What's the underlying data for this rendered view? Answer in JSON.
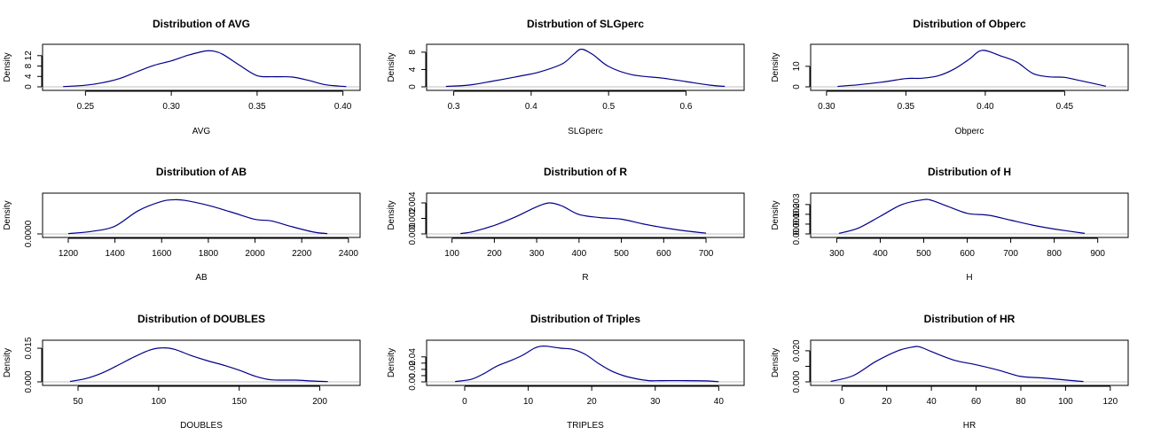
{
  "chart_data": [
    {
      "type": "line",
      "title": "Distribution of AVG",
      "xlabel": "AVG",
      "ylabel": "Density",
      "xlim": [
        0.225,
        0.41
      ],
      "ylim": [
        0,
        15
      ],
      "xticks": [
        0.25,
        0.3,
        0.35,
        0.4
      ],
      "xtick_labels": [
        "0.25",
        "0.30",
        "0.35",
        "0.40"
      ],
      "yticks": [
        0,
        4,
        8,
        12
      ],
      "ytick_labels": [
        "0",
        "4",
        "8",
        "12"
      ],
      "x": [
        0.237,
        0.25,
        0.26,
        0.27,
        0.28,
        0.29,
        0.3,
        0.31,
        0.32,
        0.325,
        0.33,
        0.34,
        0.35,
        0.36,
        0.37,
        0.38,
        0.39,
        0.402
      ],
      "y": [
        0.1,
        0.6,
        1.6,
        3.2,
        5.8,
        8.3,
        10.0,
        12.2,
        13.8,
        13.7,
        12.5,
        8.2,
        4.3,
        3.9,
        3.8,
        2.5,
        0.8,
        0.1
      ],
      "grid": false,
      "color": "#00008b"
    },
    {
      "type": "line",
      "title": "Distrbution of SLGperc",
      "xlabel": "SLGperc",
      "ylabel": "Density",
      "xlim": [
        0.265,
        0.675
      ],
      "ylim": [
        0,
        9
      ],
      "xticks": [
        0.3,
        0.4,
        0.5,
        0.6
      ],
      "xtick_labels": [
        "0.3",
        "0.4",
        "0.5",
        "0.6"
      ],
      "yticks": [
        0,
        4,
        8
      ],
      "ytick_labels": [
        "0",
        "4",
        "8"
      ],
      "x": [
        0.29,
        0.32,
        0.35,
        0.38,
        0.41,
        0.44,
        0.455,
        0.465,
        0.48,
        0.5,
        0.53,
        0.57,
        0.6,
        0.63,
        0.65
      ],
      "y": [
        0.1,
        0.4,
        1.3,
        2.3,
        3.4,
        5.3,
        7.5,
        8.7,
        7.4,
        4.7,
        2.8,
        2.0,
        1.2,
        0.4,
        0.1
      ],
      "grid": false,
      "color": "#00008b"
    },
    {
      "type": "line",
      "title": "Distribution of Obperc",
      "xlabel": "Obperc",
      "ylabel": "Density",
      "xlim": [
        0.29,
        0.49
      ],
      "ylim": [
        0,
        19
      ],
      "xticks": [
        0.3,
        0.35,
        0.4,
        0.45
      ],
      "xtick_labels": [
        "0.30",
        "0.35",
        "0.40",
        "0.45"
      ],
      "yticks": [
        0,
        10
      ],
      "ytick_labels": [
        "0",
        "10"
      ],
      "x": [
        0.307,
        0.32,
        0.335,
        0.35,
        0.36,
        0.37,
        0.38,
        0.39,
        0.398,
        0.41,
        0.42,
        0.43,
        0.44,
        0.45,
        0.46,
        0.476
      ],
      "y": [
        0.2,
        1.0,
        2.3,
        4.0,
        4.2,
        5.3,
        8.5,
        13.5,
        17.8,
        15.0,
        12.0,
        6.5,
        4.9,
        4.6,
        3.0,
        0.3
      ],
      "grid": false,
      "color": "#00008b"
    },
    {
      "type": "line",
      "title": "Distribution of AB",
      "xlabel": "AB",
      "ylabel": "Density",
      "xlim": [
        1090,
        2450
      ],
      "ylim": [
        0,
        0.0012
      ],
      "xticks": [
        1200,
        1400,
        1600,
        1800,
        2000,
        2200,
        2400
      ],
      "xtick_labels": [
        "1200",
        "1400",
        "1600",
        "1800",
        "2000",
        "2200",
        "2400"
      ],
      "yticks": [
        0
      ],
      "ytick_labels": [
        "0.0000"
      ],
      "x": [
        1200,
        1300,
        1400,
        1500,
        1600,
        1650,
        1700,
        1800,
        1900,
        2000,
        2070,
        2150,
        2250,
        2310
      ],
      "y": [
        1e-05,
        8e-05,
        0.00025,
        0.00075,
        0.00105,
        0.0011,
        0.00108,
        0.00092,
        0.0007,
        0.00047,
        0.00042,
        0.00025,
        6e-05,
        1e-05
      ],
      "grid": false,
      "color": "#00008b"
    },
    {
      "type": "line",
      "title": "Distribution of R",
      "xlabel": "R",
      "ylabel": "Density",
      "xlim": [
        40,
        790
      ],
      "ylim": [
        0,
        0.0048
      ],
      "xticks": [
        100,
        200,
        300,
        400,
        500,
        600,
        700
      ],
      "xtick_labels": [
        "100",
        "200",
        "300",
        "400",
        "500",
        "600",
        "700"
      ],
      "yticks": [
        0,
        0.002,
        0.004
      ],
      "ytick_labels": [
        "0.000",
        "0.002",
        "0.004"
      ],
      "x": [
        120,
        150,
        200,
        250,
        300,
        330,
        360,
        400,
        450,
        500,
        550,
        600,
        650,
        700
      ],
      "y": [
        5e-05,
        0.0003,
        0.0011,
        0.0022,
        0.0035,
        0.004,
        0.0036,
        0.0025,
        0.0021,
        0.0019,
        0.0013,
        0.0008,
        0.0004,
        0.0001
      ],
      "grid": false,
      "color": "#00008b"
    },
    {
      "type": "line",
      "title": "Distribution of H",
      "xlabel": "H",
      "ylabel": "Density",
      "xlim": [
        240,
        970
      ],
      "ylim": [
        0,
        0.0038
      ],
      "xticks": [
        300,
        400,
        500,
        600,
        700,
        800,
        900
      ],
      "xtick_labels": [
        "300",
        "400",
        "500",
        "600",
        "700",
        "800",
        "900"
      ],
      "yticks": [
        0,
        0.001,
        0.002,
        0.003
      ],
      "ytick_labels": [
        "0.000",
        "0.001",
        "0.002",
        "0.003"
      ],
      "x": [
        305,
        350,
        400,
        450,
        500,
        520,
        550,
        600,
        650,
        700,
        750,
        800,
        870
      ],
      "y": [
        5e-05,
        0.0006,
        0.0018,
        0.003,
        0.0035,
        0.0034,
        0.0029,
        0.0021,
        0.0019,
        0.0014,
        0.0009,
        0.0005,
        5e-05
      ],
      "grid": false,
      "color": "#00008b"
    },
    {
      "type": "line",
      "title": "Distribution of DOUBLES",
      "xlabel": "DOUBLES",
      "ylabel": "Density",
      "xlim": [
        28,
        225
      ],
      "ylim": [
        0,
        0.017
      ],
      "xticks": [
        50,
        100,
        150,
        200
      ],
      "xtick_labels": [
        "50",
        "100",
        "150",
        "200"
      ],
      "yticks": [
        0,
        0.015
      ],
      "ytick_labels": [
        "0.000",
        "0.015"
      ],
      "x": [
        45,
        55,
        65,
        75,
        85,
        95,
        103,
        110,
        120,
        130,
        140,
        150,
        160,
        170,
        185,
        195,
        205
      ],
      "y": [
        0.0002,
        0.0015,
        0.004,
        0.0075,
        0.0112,
        0.0143,
        0.0152,
        0.0145,
        0.0118,
        0.0095,
        0.0075,
        0.0052,
        0.0025,
        0.0009,
        0.0008,
        0.0004,
        0.0001
      ],
      "grid": false,
      "color": "#00008b"
    },
    {
      "type": "line",
      "title": "Distribution of Triples",
      "xlabel": "TRIPLES",
      "ylabel": "Density",
      "xlim": [
        -6,
        44
      ],
      "ylim": [
        0,
        0.061
      ],
      "xticks": [
        0,
        10,
        20,
        30,
        40
      ],
      "xtick_labels": [
        "0",
        "10",
        "20",
        "30",
        "40"
      ],
      "yticks": [
        0,
        0.01,
        0.02,
        0.03,
        0.04
      ],
      "ytick_labels": [
        "0.00",
        "",
        "0.02",
        "",
        "0.04"
      ],
      "x": [
        -1.5,
        1,
        3,
        5,
        7,
        9,
        11,
        12,
        13,
        15,
        17,
        19,
        21,
        23,
        25,
        27,
        29,
        31,
        35,
        38,
        40
      ],
      "y": [
        0.0005,
        0.004,
        0.013,
        0.025,
        0.033,
        0.042,
        0.054,
        0.057,
        0.057,
        0.054,
        0.052,
        0.044,
        0.03,
        0.018,
        0.01,
        0.005,
        0.002,
        0.002,
        0.002,
        0.0015,
        0.0003
      ],
      "grid": false,
      "color": "#00008b"
    },
    {
      "type": "line",
      "title": "Distribution of HR",
      "xlabel": "HR",
      "ylabel": "Density",
      "xlim": [
        -14,
        128
      ],
      "ylim": [
        0,
        0.0245
      ],
      "xticks": [
        0,
        20,
        40,
        60,
        80,
        100,
        120
      ],
      "xtick_labels": [
        "0",
        "20",
        "40",
        "60",
        "80",
        "100",
        "120"
      ],
      "yticks": [
        0,
        0.01,
        0.02
      ],
      "ytick_labels": [
        "0.000",
        "",
        "0.020"
      ],
      "x": [
        -5,
        5,
        15,
        25,
        32,
        35,
        40,
        50,
        60,
        70,
        80,
        90,
        100,
        108
      ],
      "y": [
        0.0003,
        0.004,
        0.013,
        0.02,
        0.0225,
        0.0224,
        0.0195,
        0.014,
        0.011,
        0.0075,
        0.0035,
        0.0025,
        0.0012,
        0.0002
      ],
      "grid": false,
      "color": "#00008b"
    }
  ]
}
